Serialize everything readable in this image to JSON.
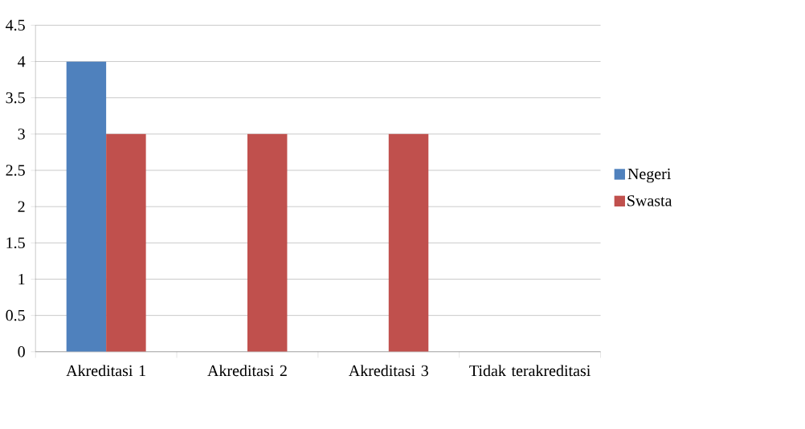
{
  "chart_data": {
    "type": "bar",
    "categories": [
      "Akreditasi 1",
      "Akreditasi 2",
      "Akreditasi 3",
      "Tidak terakreditasi"
    ],
    "series": [
      {
        "name": "Negeri",
        "color": "#4f81bd",
        "values": [
          4,
          0,
          0,
          0
        ]
      },
      {
        "name": "Swasta",
        "color": "#c0504d",
        "values": [
          3,
          3,
          3,
          0
        ]
      }
    ],
    "ylim": [
      0,
      4.5
    ],
    "yticks": [
      0,
      0.5,
      1,
      1.5,
      2,
      2.5,
      3,
      3.5,
      4,
      4.5
    ],
    "grid": "y",
    "legend": "right"
  }
}
